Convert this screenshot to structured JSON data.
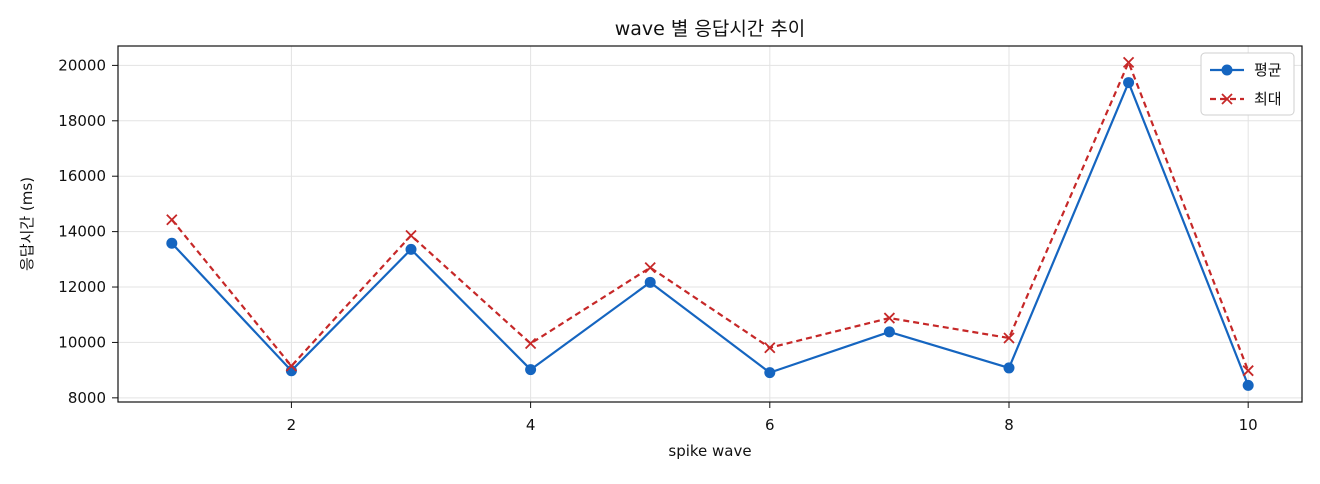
{
  "chart_data": {
    "type": "line",
    "title": "wave 별 응답시간 추이",
    "xlabel": "spike wave",
    "ylabel": "응답시간 (ms)",
    "x": [
      1,
      2,
      3,
      4,
      5,
      6,
      7,
      8,
      9,
      10
    ],
    "xlim": [
      0.55,
      10.45
    ],
    "ylim": [
      7850,
      20700
    ],
    "xticks": [
      2,
      4,
      6,
      8,
      10
    ],
    "yticks": [
      8000,
      10000,
      12000,
      14000,
      16000,
      18000,
      20000
    ],
    "xtick_labels": [
      "2",
      "4",
      "6",
      "8",
      "10"
    ],
    "ytick_labels": [
      "8000",
      "10000",
      "12000",
      "14000",
      "16000",
      "18000",
      "20000"
    ],
    "grid": true,
    "legend_position": "top-right",
    "series": [
      {
        "name": "평균",
        "values": [
          13580,
          8980,
          13360,
          9020,
          12170,
          8910,
          10380,
          9080,
          19380,
          8450
        ],
        "color": "#1565c0",
        "line_style": "solid",
        "marker": "circle"
      },
      {
        "name": "최대",
        "values": [
          14430,
          9150,
          13860,
          9960,
          12700,
          9810,
          10880,
          10160,
          20110,
          8980
        ],
        "color": "#c62828",
        "line_style": "dashed",
        "marker": "x"
      }
    ]
  }
}
